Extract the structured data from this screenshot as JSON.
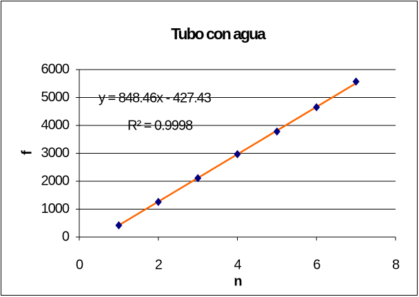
{
  "chart_data": {
    "type": "scatter",
    "title": "Tubo con agua",
    "x_label": "n",
    "y_label": "f",
    "x": [
      1,
      2,
      3,
      4,
      5,
      6,
      7
    ],
    "series": [
      {
        "name": "f",
        "color": "#000080",
        "values": [
          420,
          1260,
          2110,
          2970,
          3780,
          4650,
          5570
        ]
      }
    ],
    "trendline": {
      "slope": 848.46,
      "intercept": -427.43,
      "color": "#ff6600"
    },
    "annotations": [
      "y = 848.46x - 427.43",
      "R² = 0.9998"
    ],
    "xlim": [
      0,
      8
    ],
    "xticks": [
      0,
      2,
      4,
      6,
      8
    ],
    "ylim": [
      0,
      6000
    ],
    "yticks": [
      0,
      1000,
      2000,
      3000,
      4000,
      5000,
      6000
    ],
    "grid": true
  }
}
